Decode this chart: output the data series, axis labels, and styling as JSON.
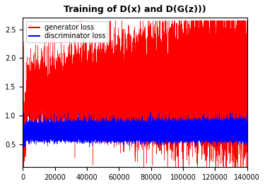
{
  "title": "Training of D(x) and D(G(z)))",
  "xlim": [
    0,
    140000
  ],
  "ylim_bottom": 0.1,
  "ylim_top": 2.7,
  "xticks": [
    0,
    20000,
    40000,
    60000,
    80000,
    100000,
    120000,
    140000
  ],
  "xtick_labels": [
    "0",
    "20000",
    "40000",
    "60000",
    "80000",
    "100000",
    "120000",
    "140000"
  ],
  "yticks": [
    0.5,
    1.0,
    1.5,
    2.0,
    2.5
  ],
  "gen_color": "#ff0000",
  "disc_color": "#0000ff",
  "legend_labels": [
    "generator loss",
    "discriminator loss"
  ],
  "n_points": 140000,
  "seed": 42,
  "figsize": [
    3.75,
    2.64
  ],
  "dpi": 100
}
